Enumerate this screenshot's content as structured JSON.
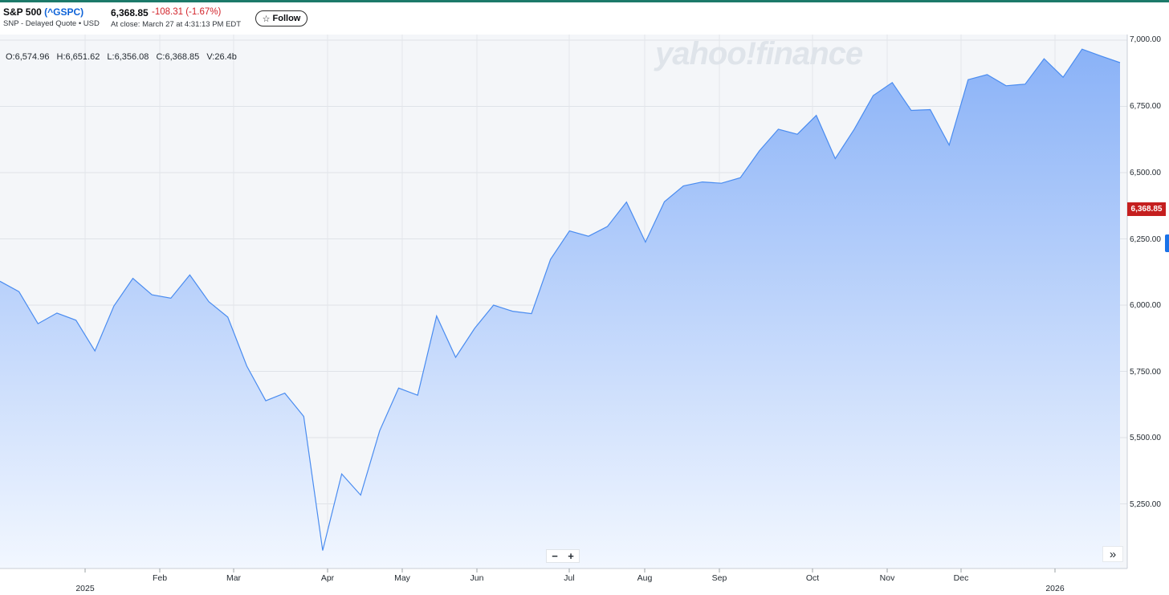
{
  "header": {
    "name": "S&P 500",
    "ticker": "(^GSPC)",
    "source": "SNP - Delayed Quote • USD",
    "price": "6,368.85",
    "change": "-108.31",
    "change_pct": "(-1.67%)",
    "timestamp": "At close: March 27 at 4:31:13 PM EDT",
    "follow_label": "Follow",
    "follow_icon": "star-outline-icon"
  },
  "ohlc": {
    "open": "O:6,574.96",
    "high": "H:6,651.62",
    "low": "L:6,356.08",
    "close": "C:6,368.85",
    "volume": "V:26.4b"
  },
  "watermark": "yahoo!finance",
  "current_price_tag": "6,368.85",
  "zoom": {
    "out": "−",
    "in": "+"
  },
  "expand_icon": "double-chevron-right-icon",
  "colors": {
    "line": "#4a8cf0",
    "fill_top": "#8ab2f7",
    "fill_bottom": "#f2f7ff",
    "price_tag": "#c51f1f",
    "down": "#d2232a",
    "ticker": "#0e63d8"
  },
  "chart_data": {
    "type": "area",
    "title": "",
    "ylim": [
      5000,
      7000
    ],
    "y_ticks": [
      "7,000.00",
      "6,750.00",
      "6,500.00",
      "6,250.00",
      "6,000.00",
      "5,750.00",
      "5,500.00",
      "5,250.00"
    ],
    "x_month_labels": [
      "Feb",
      "Mar",
      "Apr",
      "May",
      "Jun",
      "Jul",
      "Aug",
      "Sep",
      "Oct",
      "Nov",
      "Dec"
    ],
    "x_year_labels": [
      "2025",
      "2026"
    ],
    "grid": true,
    "series": [
      {
        "x": [
          "2024-12-09",
          "2024-12-16",
          "2024-12-23",
          "2024-12-30",
          "2025-01-06",
          "2025-01-13",
          "2025-01-20",
          "2025-01-27",
          "2025-02-03",
          "2025-02-10",
          "2025-02-17",
          "2025-02-24",
          "2025-03-03",
          "2025-03-10",
          "2025-03-17",
          "2025-03-24",
          "2025-03-31",
          "2025-04-07",
          "2025-04-14",
          "2025-04-21",
          "2025-04-28",
          "2025-05-05",
          "2025-05-12",
          "2025-05-19",
          "2025-05-26",
          "2025-06-02",
          "2025-06-09",
          "2025-06-16",
          "2025-06-23",
          "2025-06-30",
          "2025-07-07",
          "2025-07-14",
          "2025-07-21",
          "2025-07-28",
          "2025-08-04",
          "2025-08-11",
          "2025-08-18",
          "2025-08-25",
          "2025-09-01",
          "2025-09-08",
          "2025-09-15",
          "2025-09-22",
          "2025-09-29",
          "2025-10-06",
          "2025-10-13",
          "2025-10-20",
          "2025-10-27",
          "2025-11-03",
          "2025-11-10",
          "2025-11-17",
          "2025-11-24",
          "2025-12-01",
          "2025-12-08",
          "2025-12-15",
          "2025-12-22",
          "2025-12-29",
          "2026-01-05",
          "2026-01-12",
          "2026-01-19",
          "2026-01-26"
        ],
        "values": [
          6090,
          6051,
          5930,
          5970,
          5943,
          5827,
          5997,
          6101,
          6039,
          6026,
          6114,
          6013,
          5955,
          5770,
          5639,
          5668,
          5580,
          5074,
          5363,
          5283,
          5526,
          5687,
          5660,
          5959,
          5803,
          5912,
          6000,
          5977,
          5968,
          6173,
          6280,
          6260,
          6297,
          6389,
          6238,
          6390,
          6450,
          6465,
          6460,
          6481,
          6582,
          6664,
          6645,
          6716,
          6553,
          6664,
          6791,
          6840,
          6735,
          6738,
          6604,
          6851,
          6870,
          6828,
          6834,
          6930,
          6860,
          6966,
          6940,
          6915
        ]
      }
    ]
  }
}
